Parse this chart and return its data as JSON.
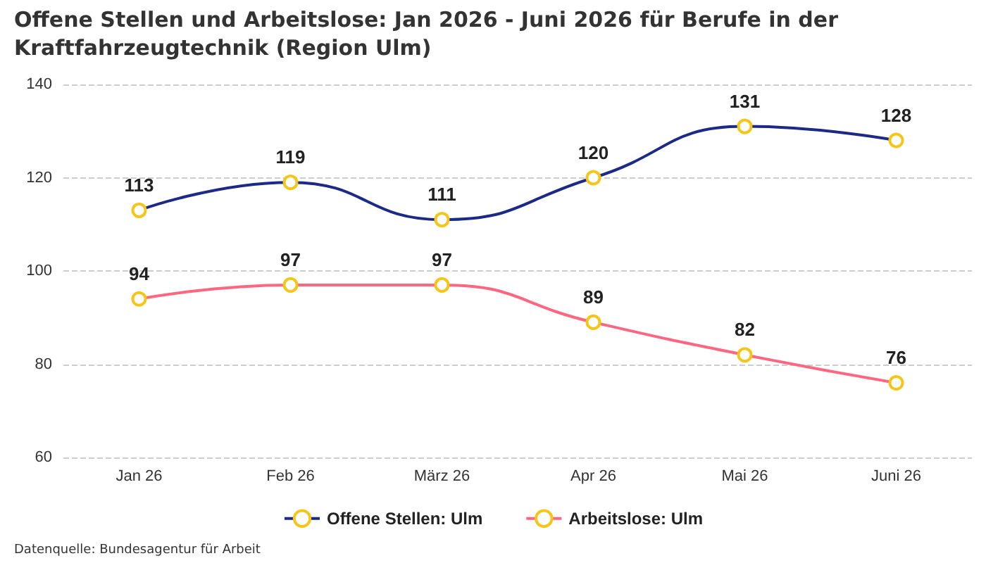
{
  "chart_data": {
    "type": "line",
    "title": "Offene Stellen und Arbeitslose: Jan 2026 - Juni 2026 für Berufe in der Kraftfahrzeugtechnik (Region Ulm)",
    "categories": [
      "Jan 26",
      "Feb 26",
      "März 26",
      "Apr 26",
      "Mai 26",
      "Juni 26"
    ],
    "series": [
      {
        "name": "Offene Stellen: Ulm",
        "color": "#1c2a87",
        "values": [
          113,
          119,
          111,
          120,
          131,
          128
        ]
      },
      {
        "name": "Arbeitslose: Ulm",
        "color": "#ff6680",
        "values": [
          94,
          97,
          97,
          89,
          82,
          76
        ]
      }
    ],
    "ylim": [
      60,
      140
    ],
    "yticks": [
      60,
      80,
      100,
      120,
      140
    ],
    "grid": "y",
    "legend": "bottom",
    "marker": "circle",
    "data_labels": true,
    "annotations": [
      "Datenquelle: Bundesagentur für Arbeit"
    ]
  }
}
